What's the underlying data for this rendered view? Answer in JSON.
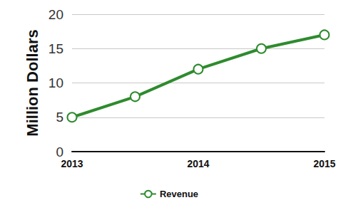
{
  "chart_data": {
    "type": "line",
    "ylabel": "Million Dollars",
    "categories": [
      "2013",
      null,
      "2014",
      null,
      "2015"
    ],
    "series": [
      {
        "name": "Revenue",
        "color": "#2e8b2e",
        "marker": "hollow-circle",
        "values": [
          5,
          8,
          12,
          15,
          17
        ]
      }
    ],
    "ylim": [
      0,
      20
    ],
    "yticks": [
      0,
      5,
      10,
      15,
      20
    ],
    "grid": true,
    "legend": "bottom"
  }
}
